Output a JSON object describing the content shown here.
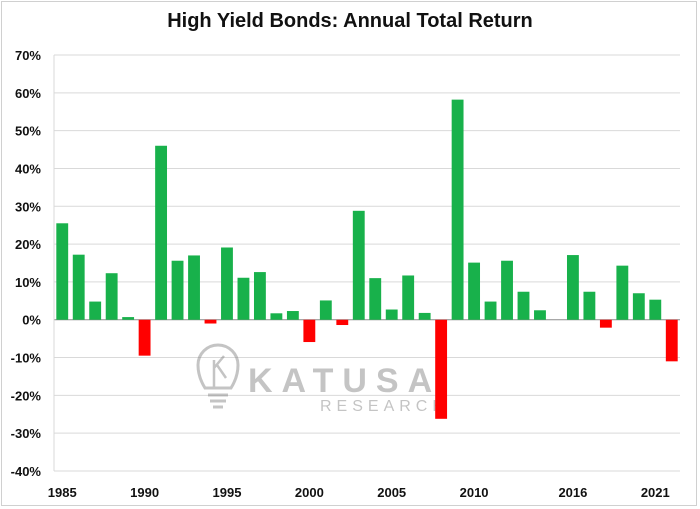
{
  "chart_data": {
    "type": "bar",
    "title": "High Yield Bonds: Annual Total Return",
    "xlabel": "",
    "ylabel": "",
    "ylim": [
      -40,
      70
    ],
    "y_ticks": [
      70,
      60,
      50,
      40,
      30,
      20,
      10,
      0,
      -10,
      -20,
      -30,
      -40
    ],
    "y_tick_labels": [
      "70%",
      "60%",
      "50%",
      "40%",
      "30%",
      "20%",
      "10%",
      "0%",
      "-10%",
      "-20%",
      "-30%",
      "-40%"
    ],
    "x_tick_labels": [
      "1985",
      "1990",
      "1995",
      "2000",
      "2005",
      "2010",
      "2016",
      "2021"
    ],
    "categories": [
      "1985",
      "1986",
      "1987",
      "1988",
      "1989",
      "1990",
      "1991",
      "1992",
      "1993",
      "1994",
      "1995",
      "1996",
      "1997",
      "1998",
      "1999",
      "2000",
      "2001",
      "2002",
      "2003",
      "2004",
      "2005",
      "2006",
      "2007",
      "2008",
      "2009",
      "2010",
      "2011",
      "2012",
      "2013",
      "2014",
      "2015",
      "2016",
      "2017",
      "2018",
      "2019",
      "2020",
      "2021",
      "2022"
    ],
    "values": [
      25.5,
      17.2,
      4.8,
      12.3,
      0.7,
      -9.5,
      46.0,
      15.6,
      17.0,
      -1.0,
      19.1,
      11.1,
      12.6,
      1.7,
      2.3,
      -5.9,
      5.1,
      -1.4,
      28.8,
      11.0,
      2.7,
      11.7,
      1.8,
      -26.2,
      58.2,
      15.1,
      4.8,
      15.6,
      7.4,
      2.5,
      null,
      17.1,
      7.4,
      -2.1,
      14.3,
      7.0,
      5.3,
      -11.0
    ],
    "grid": true,
    "legend": "none",
    "colors": {
      "positive": "#18b14b",
      "negative": "#ff0000",
      "grid": "#d9d9d9",
      "axis": "#8c8c8c"
    }
  },
  "watermark": {
    "name": "KATUSA",
    "subname": "RESEARCH",
    "icon": "lightbulb-icon"
  }
}
